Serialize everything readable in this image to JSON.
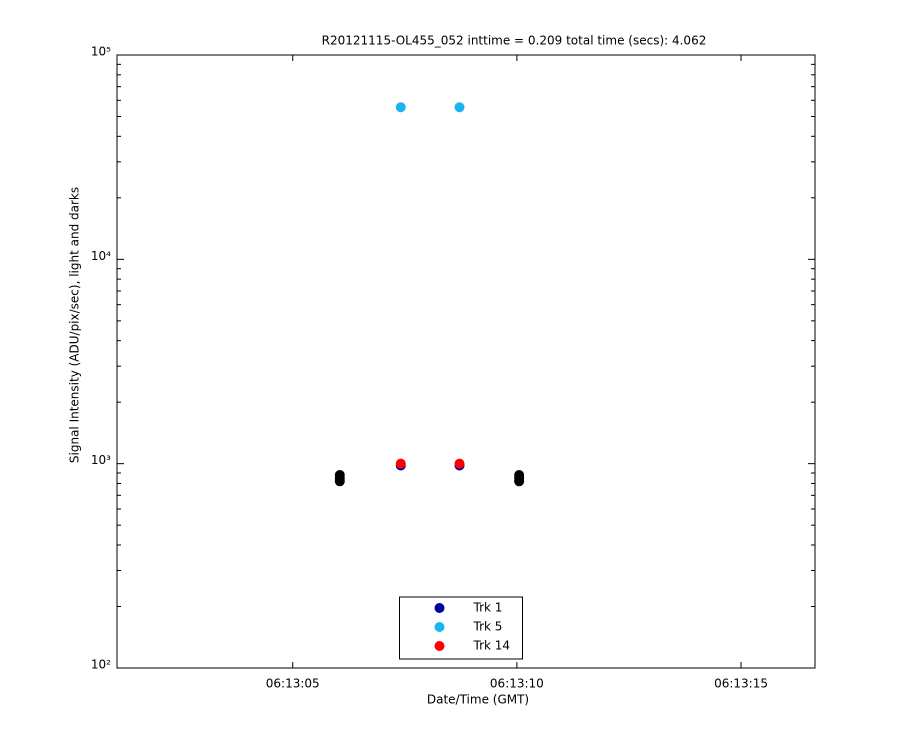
{
  "chart_data": {
    "type": "scatter",
    "title": "R20121115-OL455_052 inttime = 0.209 total time (secs): 4.062",
    "x_label": "Date/Time (GMT)",
    "y_label": "Signal Intensity (ADU/pix/sec), light and darks",
    "log_y": true,
    "legend_position": "south",
    "xlim": [
      "06:13:01.08",
      "06:13:16.65"
    ],
    "xticks": [
      "06:13:05",
      "06:13:10",
      "06:13:15"
    ],
    "ylim": [
      100,
      100000
    ],
    "yticks": [
      {
        "value": 100,
        "label": "10²"
      },
      {
        "value": 1000,
        "label": "10³"
      },
      {
        "value": 10000,
        "label": "10⁴"
      },
      {
        "value": 100000,
        "label": "10⁵"
      }
    ],
    "series": [
      {
        "color": "#000000",
        "x": [
          "06:13:06.05",
          "06:13:06.05",
          "06:13:06.05",
          "06:13:10.05",
          "06:13:10.05",
          "06:13:10.05"
        ],
        "values": [
          880,
          850,
          820,
          880,
          850,
          820
        ]
      },
      {
        "name": "Trk 1",
        "color": "#00009c",
        "x": [
          "06:13:07.41",
          "06:13:08.72"
        ],
        "values": [
          980,
          980
        ]
      },
      {
        "name": "Trk 5",
        "color": "#1ab4f0",
        "x": [
          "06:13:07.41",
          "06:13:08.72"
        ],
        "values": [
          55500,
          55500
        ]
      },
      {
        "name": "Trk 14",
        "color": "#ff0000",
        "x": [
          "06:13:07.41",
          "06:13:08.72"
        ],
        "values": [
          1000,
          1000
        ]
      }
    ]
  }
}
